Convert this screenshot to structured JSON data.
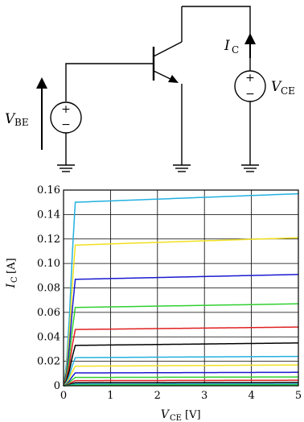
{
  "circuit": {
    "vbe_label": "V",
    "vbe_sub": "BE",
    "vce_label": "V",
    "vce_sub": "CE",
    "ic_label": "I",
    "ic_sub": "C",
    "plus": "+",
    "minus": "−"
  },
  "chart_data": {
    "type": "line",
    "xlabel_main": "V",
    "xlabel_sub": "CE",
    "xlabel_unit": "[V]",
    "ylabel_main": "I",
    "ylabel_sub": "C",
    "ylabel_unit": "[A]",
    "xlim": [
      0,
      5
    ],
    "ylim": [
      0,
      0.16
    ],
    "xticks": [
      "0",
      "1",
      "2",
      "3",
      "4",
      "5"
    ],
    "yticks": [
      "0",
      "0.02",
      "0.04",
      "0.06",
      "0.08",
      "0.10",
      "0.12",
      "0.14",
      "0.16"
    ],
    "grid": true,
    "series": [
      {
        "color": "#22b0e0",
        "sat": 0.15,
        "end": 0.157
      },
      {
        "color": "#f0e020",
        "sat": 0.115,
        "end": 0.121
      },
      {
        "color": "#1a1ad0",
        "sat": 0.087,
        "end": 0.091
      },
      {
        "color": "#30d030",
        "sat": 0.064,
        "end": 0.067
      },
      {
        "color": "#e02020",
        "sat": 0.046,
        "end": 0.048
      },
      {
        "color": "#000000",
        "sat": 0.033,
        "end": 0.035
      },
      {
        "color": "#22b0e0",
        "sat": 0.023,
        "end": 0.024
      },
      {
        "color": "#f0e020",
        "sat": 0.016,
        "end": 0.017
      },
      {
        "color": "#1a1ad0",
        "sat": 0.0105,
        "end": 0.011
      },
      {
        "color": "#30d030",
        "sat": 0.0068,
        "end": 0.0072
      },
      {
        "color": "#e02020",
        "sat": 0.0042,
        "end": 0.0045
      },
      {
        "color": "#000000",
        "sat": 0.0025,
        "end": 0.0027
      },
      {
        "color": "#22b0e0",
        "sat": 0.0014,
        "end": 0.0015
      },
      {
        "color": "#30d030",
        "sat": 0.0006,
        "end": 0.0007
      }
    ]
  }
}
